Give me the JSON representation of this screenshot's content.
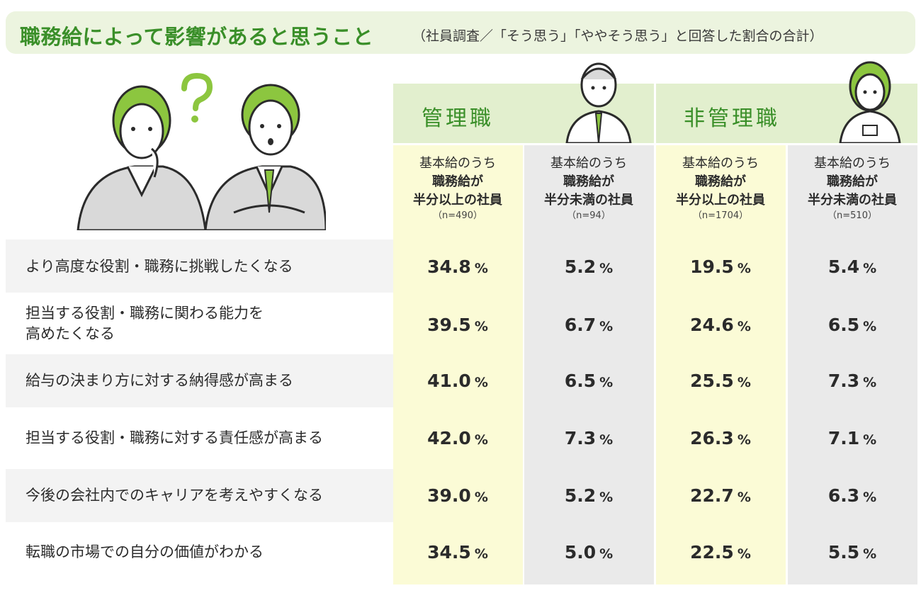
{
  "title": "職務給によって影響があると思うこと",
  "subtitle": "（社員調査／「そう思う」「ややそう思う」と回答した割合の合計）",
  "groups": [
    {
      "label": "管理職",
      "icon": "male-employee-icon"
    },
    {
      "label": "非管理職",
      "icon": "female-employee-icon"
    }
  ],
  "columns": [
    {
      "line1": "基本給のうち",
      "line2": "職務給が",
      "line3": "半分以上の社員",
      "n": "（n=490）"
    },
    {
      "line1": "基本給のうち",
      "line2": "職務給が",
      "line3": "半分未満の社員",
      "n": "（n=94）"
    },
    {
      "line1": "基本給のうち",
      "line2": "職務給が",
      "line3": "半分以上の社員",
      "n": "（n=1704）"
    },
    {
      "line1": "基本給のうち",
      "line2": "職務給が",
      "line3": "半分未満の社員",
      "n": "（n=510）"
    }
  ],
  "unit": "%",
  "rows": [
    {
      "label": [
        "より高度な役割・職務に挑戦したくなる"
      ],
      "values": [
        "34.8",
        "5.2",
        "19.5",
        "5.4"
      ]
    },
    {
      "label": [
        "担当する役割・職務に関わる能力を",
        "高めたくなる"
      ],
      "values": [
        "39.5",
        "6.7",
        "24.6",
        "6.5"
      ]
    },
    {
      "label": [
        "給与の決まり方に対する納得感が高まる"
      ],
      "values": [
        "41.0",
        "6.5",
        "25.5",
        "7.3"
      ]
    },
    {
      "label": [
        "担当する役割・職務に対する責任感が高まる"
      ],
      "values": [
        "42.0",
        "7.3",
        "26.3",
        "7.1"
      ]
    },
    {
      "label": [
        "今後の会社内でのキャリアを考えやすくなる"
      ],
      "values": [
        "39.0",
        "5.2",
        "22.7",
        "6.3"
      ]
    },
    {
      "label": [
        "転職の市場での自分の価値がわかる"
      ],
      "values": [
        "34.5",
        "5.0",
        "22.5",
        "5.5"
      ]
    }
  ],
  "colors": {
    "accent": "#3a8f29",
    "header_bg": "#e2efce",
    "yellow_col": "#fbfbd6",
    "gray_col": "#eaeaea",
    "title_bg": "#ecf4df"
  },
  "illustration": {
    "icon": "thinking-employees-icon",
    "mark_icon": "question-mark-icon"
  },
  "chart_data": {
    "type": "table",
    "title": "職務給によって影響があると思うこと",
    "subtitle": "（社員調査／「そう思う」「ややそう思う」と回答した割合の合計）",
    "groups": [
      "管理職",
      "非管理職"
    ],
    "columns": [
      "管理職・基本給のうち職務給が半分以上の社員（n=490）",
      "管理職・基本給のうち職務給が半分未満の社員（n=94）",
      "非管理職・基本給のうち職務給が半分以上の社員（n=1704）",
      "非管理職・基本給のうち職務給が半分未満の社員（n=510）"
    ],
    "categories": [
      "より高度な役割・職務に挑戦したくなる",
      "担当する役割・職務に関わる能力を高めたくなる",
      "給与の決まり方に対する納得感が高まる",
      "担当する役割・職務に対する責任感が高まる",
      "今後の会社内でのキャリアを考えやすくなる",
      "転職の市場での自分の価値がわかる"
    ],
    "unit": "%",
    "series": [
      {
        "name": "管理職・基本給のうち職務給が半分以上の社員（n=490）",
        "values": [
          34.8,
          39.5,
          41.0,
          42.0,
          39.0,
          34.5
        ]
      },
      {
        "name": "管理職・基本給のうち職務給が半分未満の社員（n=94）",
        "values": [
          5.2,
          6.7,
          6.5,
          7.3,
          5.2,
          5.0
        ]
      },
      {
        "name": "非管理職・基本給のうち職務給が半分以上の社員（n=1704）",
        "values": [
          19.5,
          24.6,
          25.5,
          26.3,
          22.7,
          22.5
        ]
      },
      {
        "name": "非管理職・基本給のうち職務給が半分未満の社員（n=510）",
        "values": [
          5.4,
          6.5,
          7.3,
          7.1,
          6.3,
          5.5
        ]
      }
    ]
  }
}
